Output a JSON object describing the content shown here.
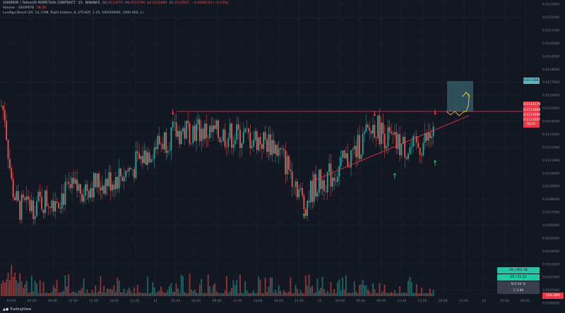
{
  "header": {
    "line1": {
      "symbol": "1000PEPE / TetherUS PERPETUAL CONTRACT · 15 · BINANCE",
      "o_label": "O",
      "o": "0.0113476",
      "h_label": "H",
      "h": "0.0113790",
      "l_label": "L",
      "l": "0.0113484",
      "c_label": "C",
      "c": "0.0113507",
      "chg": "−0.0000144 (−0.13%)"
    },
    "line2": {
      "name": "Volume · 1000PEPE",
      "value": "58.5K"
    },
    "line3": {
      "name": "LuxAlgo-Beard (20, 14, CAM, Right bottom, 8, STEADY, 1.25, 100000000, 1000 000, 1)"
    }
  },
  "price_axis": {
    "ticks": [
      "0.0123000",
      "0.0122000",
      "0.0121000",
      "0.0120000",
      "0.0119000",
      "0.0118000",
      "0.0117000",
      "0.0116000",
      "0.0115000",
      "0.0114000",
      "0.0113000",
      "0.0112000",
      "0.0111000",
      "0.0110000",
      "0.0109000",
      "0.0108000",
      "0.0107000",
      "0.0106000",
      "0.0105000",
      "0.0104000",
      "0.0103000",
      "0.0102000",
      "0.0101000",
      "0.0100000"
    ],
    "labels": {
      "target": "0.0115667",
      "resistance": "0.0114279",
      "price_1": "0.0113909",
      "price_2": "0.0113606",
      "price_3": "0.0113507",
      "countdown": "05:41"
    }
  },
  "time_axis": {
    "ticks": [
      "03:00",
      "06:00",
      "09:00",
      "12:00",
      "15:00",
      "18:00",
      "21:00",
      "14",
      "03:00",
      "06:00",
      "09:00",
      "12:00",
      "15:00",
      "18:00",
      "21:00",
      "15",
      "03:00",
      "06:00",
      "09:00",
      "12:00",
      "15:00",
      "18:00",
      "21:00",
      "16",
      "03:00",
      "06:00"
    ]
  },
  "stats_box": {
    "row1": "20 / 961.38",
    "row2": "20 / 55.26",
    "row3": "N  0.64 %",
    "row4": "C  0.89",
    "vol_label": "103.28M"
  },
  "branding": {
    "text": "TradingView"
  },
  "colors": {
    "bg": "#131722",
    "up": "#26a69a",
    "down": "#ef5350",
    "line": "#f23645",
    "target": "#5fb8bf",
    "arrow_up": "#22c55e",
    "arrow_down": "#f23645",
    "projection": "#fde047"
  },
  "chart_data": {
    "type": "candlestick",
    "symbol": "1000PEPE/USDT Perpetual",
    "timeframe": "15m",
    "price_range": [
      0.01,
      0.0123
    ],
    "resistance_level": 0.0114279,
    "support_trendline": {
      "from": [
        "14 22:30",
        0.01073
      ],
      "to": [
        "16 04:00",
        0.01136
      ]
    },
    "target_box": {
      "top": 0.0115667,
      "bottom": 0.0114279
    },
    "swing_highs": [
      {
        "time": "14 03:00",
        "price": 0.01142
      },
      {
        "time": "15 09:00",
        "price": 0.01141
      },
      {
        "time": "15 18:00",
        "price": 0.01142
      }
    ],
    "swing_lows": [
      {
        "time": "14 22:30",
        "price": 0.01073
      },
      {
        "time": "15 12:00",
        "price": 0.01104
      },
      {
        "time": "15 18:00",
        "price": 0.01114
      }
    ],
    "path": [
      [
        "13 01:30",
        0.01152
      ],
      [
        "13 02:00",
        0.01145
      ],
      [
        "13 02:30",
        0.01118
      ],
      [
        "13 03:00",
        0.01092
      ],
      [
        "13 04:00",
        0.01073
      ],
      [
        "13 06:00",
        0.01075
      ],
      [
        "13 09:00",
        0.01081
      ],
      [
        "13 12:00",
        0.01086
      ],
      [
        "13 15:00",
        0.01091
      ],
      [
        "13 18:00",
        0.01095
      ],
      [
        "13 21:00",
        0.01104
      ],
      [
        "14 00:00",
        0.0112
      ],
      [
        "14 03:00",
        0.0113
      ],
      [
        "14 06:00",
        0.01134
      ],
      [
        "14 09:00",
        0.0113
      ],
      [
        "14 12:00",
        0.01129
      ],
      [
        "14 15:00",
        0.01127
      ],
      [
        "14 18:00",
        0.01122
      ],
      [
        "14 21:00",
        0.01098
      ],
      [
        "14 22:30",
        0.01075
      ],
      [
        "15 00:00",
        0.0109
      ],
      [
        "15 03:00",
        0.011
      ],
      [
        "15 06:00",
        0.01116
      ],
      [
        "15 09:00",
        0.01137
      ],
      [
        "15 12:00",
        0.01122
      ],
      [
        "15 15:00",
        0.01118
      ],
      [
        "15 18:00",
        0.01131
      ]
    ]
  }
}
